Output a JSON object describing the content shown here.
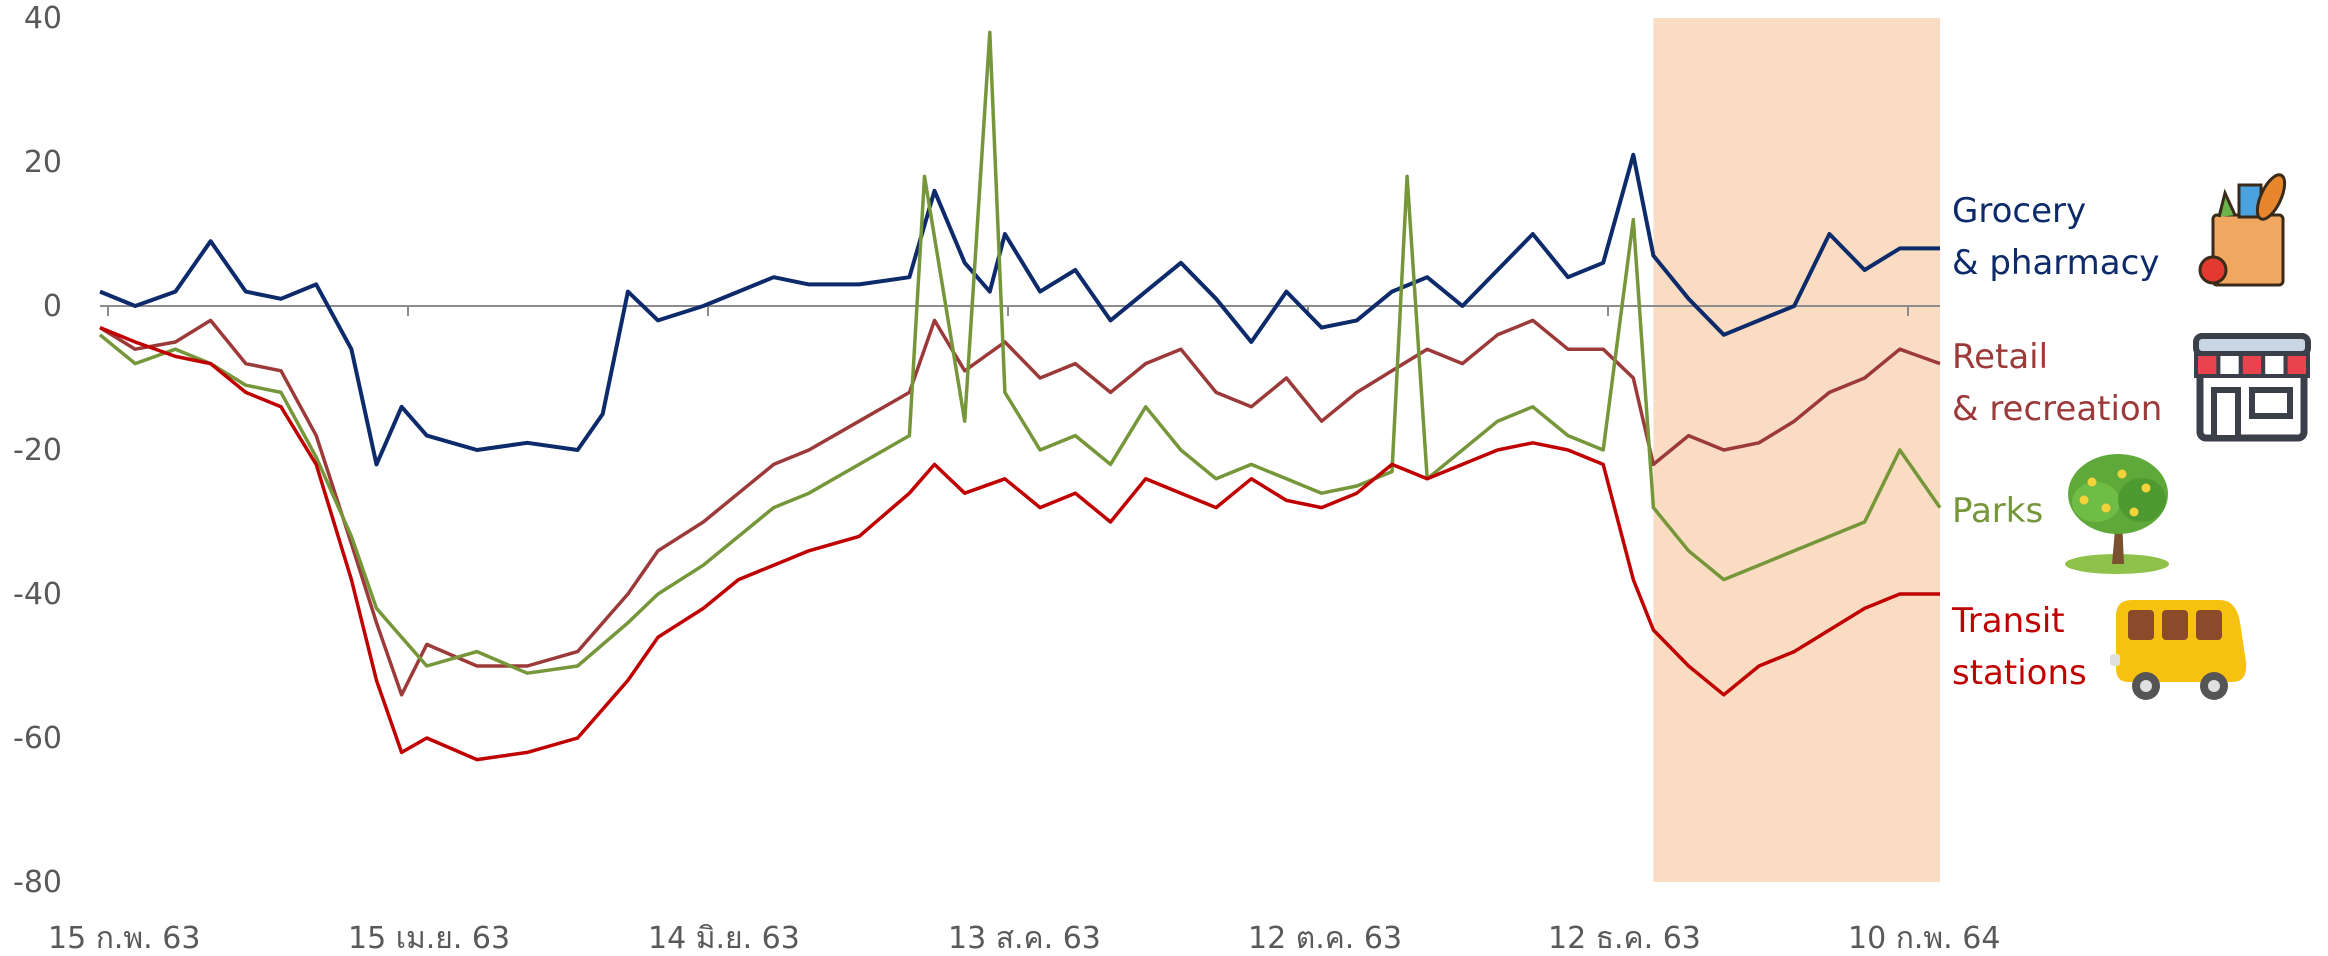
{
  "chart_data": {
    "type": "line",
    "yticks": [
      40,
      20,
      0,
      -20,
      -40,
      -60,
      -80
    ],
    "ylim": [
      -80,
      40
    ],
    "xticks": [
      "15 ก.พ. 63",
      "15 เม.ย. 63",
      "14 มิ.ย. 63",
      "13 ส.ค. 63",
      "12 ต.ค. 63",
      "12 ธ.ค. 63",
      "10 ก.พ. 64"
    ],
    "x_start": "2020-02-15",
    "x_end": "2021-02-15",
    "highlight": {
      "start": "2020-12-20",
      "end": "2021-02-15",
      "color": "#fadcc3"
    },
    "grid": false,
    "legend_position": "right",
    "series": [
      {
        "name": "Grocery\n& pharmacy",
        "color": "#0d2a6b",
        "icon": "grocery-bag-icon",
        "points": [
          [
            "2020-02-15",
            2
          ],
          [
            "2020-02-22",
            0
          ],
          [
            "2020-03-01",
            2
          ],
          [
            "2020-03-08",
            9
          ],
          [
            "2020-03-15",
            2
          ],
          [
            "2020-03-22",
            1
          ],
          [
            "2020-03-29",
            3
          ],
          [
            "2020-04-05",
            -6
          ],
          [
            "2020-04-10",
            -22
          ],
          [
            "2020-04-15",
            -14
          ],
          [
            "2020-04-20",
            -18
          ],
          [
            "2020-04-30",
            -20
          ],
          [
            "2020-05-10",
            -19
          ],
          [
            "2020-05-20",
            -20
          ],
          [
            "2020-05-25",
            -15
          ],
          [
            "2020-05-30",
            2
          ],
          [
            "2020-06-05",
            -2
          ],
          [
            "2020-06-14",
            0
          ],
          [
            "2020-06-21",
            2
          ],
          [
            "2020-06-28",
            4
          ],
          [
            "2020-07-05",
            3
          ],
          [
            "2020-07-15",
            3
          ],
          [
            "2020-07-25",
            4
          ],
          [
            "2020-07-30",
            16
          ],
          [
            "2020-08-05",
            6
          ],
          [
            "2020-08-10",
            2
          ],
          [
            "2020-08-13",
            10
          ],
          [
            "2020-08-20",
            2
          ],
          [
            "2020-08-27",
            5
          ],
          [
            "2020-09-03",
            -2
          ],
          [
            "2020-09-10",
            2
          ],
          [
            "2020-09-17",
            6
          ],
          [
            "2020-09-24",
            1
          ],
          [
            "2020-10-01",
            -5
          ],
          [
            "2020-10-08",
            2
          ],
          [
            "2020-10-15",
            -3
          ],
          [
            "2020-10-22",
            -2
          ],
          [
            "2020-10-29",
            2
          ],
          [
            "2020-11-05",
            4
          ],
          [
            "2020-11-12",
            0
          ],
          [
            "2020-11-19",
            5
          ],
          [
            "2020-11-26",
            10
          ],
          [
            "2020-12-03",
            4
          ],
          [
            "2020-12-10",
            6
          ],
          [
            "2020-12-16",
            21
          ],
          [
            "2020-12-20",
            7
          ],
          [
            "2020-12-27",
            1
          ],
          [
            "2021-01-03",
            -4
          ],
          [
            "2021-01-10",
            -2
          ],
          [
            "2021-01-17",
            0
          ],
          [
            "2021-01-24",
            10
          ],
          [
            "2021-01-31",
            5
          ],
          [
            "2021-02-07",
            8
          ],
          [
            "2021-02-15",
            8
          ]
        ]
      },
      {
        "name": "Retail\n& recreation",
        "color": "#9c3a3a",
        "icon": "store-icon",
        "points": [
          [
            "2020-02-15",
            -3
          ],
          [
            "2020-02-22",
            -6
          ],
          [
            "2020-03-01",
            -5
          ],
          [
            "2020-03-08",
            -2
          ],
          [
            "2020-03-15",
            -8
          ],
          [
            "2020-03-22",
            -9
          ],
          [
            "2020-03-29",
            -18
          ],
          [
            "2020-04-05",
            -33
          ],
          [
            "2020-04-10",
            -44
          ],
          [
            "2020-04-15",
            -54
          ],
          [
            "2020-04-20",
            -47
          ],
          [
            "2020-04-30",
            -50
          ],
          [
            "2020-05-10",
            -50
          ],
          [
            "2020-05-20",
            -48
          ],
          [
            "2020-05-30",
            -40
          ],
          [
            "2020-06-05",
            -34
          ],
          [
            "2020-06-14",
            -30
          ],
          [
            "2020-06-21",
            -26
          ],
          [
            "2020-06-28",
            -22
          ],
          [
            "2020-07-05",
            -20
          ],
          [
            "2020-07-15",
            -16
          ],
          [
            "2020-07-25",
            -12
          ],
          [
            "2020-07-30",
            -2
          ],
          [
            "2020-08-05",
            -9
          ],
          [
            "2020-08-13",
            -5
          ],
          [
            "2020-08-20",
            -10
          ],
          [
            "2020-08-27",
            -8
          ],
          [
            "2020-09-03",
            -12
          ],
          [
            "2020-09-10",
            -8
          ],
          [
            "2020-09-17",
            -6
          ],
          [
            "2020-09-24",
            -12
          ],
          [
            "2020-10-01",
            -14
          ],
          [
            "2020-10-08",
            -10
          ],
          [
            "2020-10-15",
            -16
          ],
          [
            "2020-10-22",
            -12
          ],
          [
            "2020-10-29",
            -9
          ],
          [
            "2020-11-05",
            -6
          ],
          [
            "2020-11-12",
            -8
          ],
          [
            "2020-11-19",
            -4
          ],
          [
            "2020-11-26",
            -2
          ],
          [
            "2020-12-03",
            -6
          ],
          [
            "2020-12-10",
            -6
          ],
          [
            "2020-12-16",
            -10
          ],
          [
            "2020-12-20",
            -22
          ],
          [
            "2020-12-27",
            -18
          ],
          [
            "2021-01-03",
            -20
          ],
          [
            "2021-01-10",
            -19
          ],
          [
            "2021-01-17",
            -16
          ],
          [
            "2021-01-24",
            -12
          ],
          [
            "2021-01-31",
            -10
          ],
          [
            "2021-02-07",
            -6
          ],
          [
            "2021-02-15",
            -8
          ]
        ]
      },
      {
        "name": "Parks",
        "color": "#76963a",
        "icon": "tree-icon",
        "points": [
          [
            "2020-02-15",
            -4
          ],
          [
            "2020-02-22",
            -8
          ],
          [
            "2020-03-01",
            -6
          ],
          [
            "2020-03-08",
            -8
          ],
          [
            "2020-03-15",
            -11
          ],
          [
            "2020-03-22",
            -12
          ],
          [
            "2020-03-29",
            -21
          ],
          [
            "2020-04-05",
            -32
          ],
          [
            "2020-04-10",
            -42
          ],
          [
            "2020-04-15",
            -46
          ],
          [
            "2020-04-20",
            -50
          ],
          [
            "2020-04-30",
            -48
          ],
          [
            "2020-05-10",
            -51
          ],
          [
            "2020-05-20",
            -50
          ],
          [
            "2020-05-30",
            -44
          ],
          [
            "2020-06-05",
            -40
          ],
          [
            "2020-06-14",
            -36
          ],
          [
            "2020-06-21",
            -32
          ],
          [
            "2020-06-28",
            -28
          ],
          [
            "2020-07-05",
            -26
          ],
          [
            "2020-07-15",
            -22
          ],
          [
            "2020-07-25",
            -18
          ],
          [
            "2020-07-28",
            18
          ],
          [
            "2020-08-05",
            -16
          ],
          [
            "2020-08-10",
            38
          ],
          [
            "2020-08-13",
            -12
          ],
          [
            "2020-08-20",
            -20
          ],
          [
            "2020-08-27",
            -18
          ],
          [
            "2020-09-03",
            -22
          ],
          [
            "2020-09-10",
            -14
          ],
          [
            "2020-09-17",
            -20
          ],
          [
            "2020-09-24",
            -24
          ],
          [
            "2020-10-01",
            -22
          ],
          [
            "2020-10-08",
            -24
          ],
          [
            "2020-10-15",
            -26
          ],
          [
            "2020-10-22",
            -25
          ],
          [
            "2020-10-29",
            -23
          ],
          [
            "2020-11-01",
            18
          ],
          [
            "2020-11-05",
            -24
          ],
          [
            "2020-11-12",
            -20
          ],
          [
            "2020-11-19",
            -16
          ],
          [
            "2020-11-26",
            -14
          ],
          [
            "2020-12-03",
            -18
          ],
          [
            "2020-12-10",
            -20
          ],
          [
            "2020-12-16",
            12
          ],
          [
            "2020-12-20",
            -28
          ],
          [
            "2020-12-27",
            -34
          ],
          [
            "2021-01-03",
            -38
          ],
          [
            "2021-01-10",
            -36
          ],
          [
            "2021-01-17",
            -34
          ],
          [
            "2021-01-24",
            -32
          ],
          [
            "2021-01-31",
            -30
          ],
          [
            "2021-02-07",
            -20
          ],
          [
            "2021-02-15",
            -28
          ]
        ]
      },
      {
        "name": "Transit\nstations",
        "color": "#c00000",
        "icon": "bus-icon",
        "points": [
          [
            "2020-02-15",
            -3
          ],
          [
            "2020-02-22",
            -5
          ],
          [
            "2020-03-01",
            -7
          ],
          [
            "2020-03-08",
            -8
          ],
          [
            "2020-03-15",
            -12
          ],
          [
            "2020-03-22",
            -14
          ],
          [
            "2020-03-29",
            -22
          ],
          [
            "2020-04-05",
            -38
          ],
          [
            "2020-04-10",
            -52
          ],
          [
            "2020-04-15",
            -62
          ],
          [
            "2020-04-20",
            -60
          ],
          [
            "2020-04-30",
            -63
          ],
          [
            "2020-05-10",
            -62
          ],
          [
            "2020-05-20",
            -60
          ],
          [
            "2020-05-30",
            -52
          ],
          [
            "2020-06-05",
            -46
          ],
          [
            "2020-06-14",
            -42
          ],
          [
            "2020-06-21",
            -38
          ],
          [
            "2020-06-28",
            -36
          ],
          [
            "2020-07-05",
            -34
          ],
          [
            "2020-07-15",
            -32
          ],
          [
            "2020-07-25",
            -26
          ],
          [
            "2020-07-30",
            -22
          ],
          [
            "2020-08-05",
            -26
          ],
          [
            "2020-08-13",
            -24
          ],
          [
            "2020-08-20",
            -28
          ],
          [
            "2020-08-27",
            -26
          ],
          [
            "2020-09-03",
            -30
          ],
          [
            "2020-09-10",
            -24
          ],
          [
            "2020-09-17",
            -26
          ],
          [
            "2020-09-24",
            -28
          ],
          [
            "2020-10-01",
            -24
          ],
          [
            "2020-10-08",
            -27
          ],
          [
            "2020-10-15",
            -28
          ],
          [
            "2020-10-22",
            -26
          ],
          [
            "2020-10-29",
            -22
          ],
          [
            "2020-11-05",
            -24
          ],
          [
            "2020-11-12",
            -22
          ],
          [
            "2020-11-19",
            -20
          ],
          [
            "2020-11-26",
            -19
          ],
          [
            "2020-12-03",
            -20
          ],
          [
            "2020-12-10",
            -22
          ],
          [
            "2020-12-16",
            -38
          ],
          [
            "2020-12-20",
            -45
          ],
          [
            "2020-12-27",
            -50
          ],
          [
            "2021-01-03",
            -54
          ],
          [
            "2021-01-10",
            -50
          ],
          [
            "2021-01-17",
            -48
          ],
          [
            "2021-01-24",
            -45
          ],
          [
            "2021-01-31",
            -42
          ],
          [
            "2021-02-07",
            -40
          ],
          [
            "2021-02-15",
            -40
          ]
        ]
      }
    ]
  }
}
